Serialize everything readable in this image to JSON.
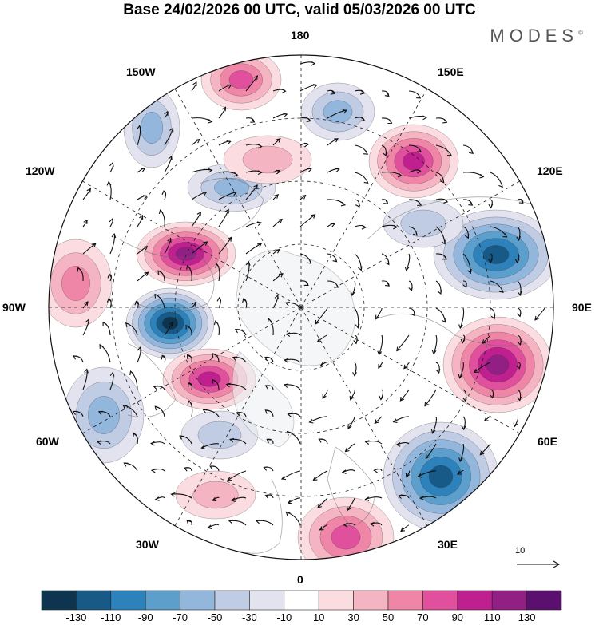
{
  "header": {
    "title": "Base 24/02/2026 00 UTC, valid 05/03/2026 00 UTC",
    "brand": "MODES",
    "brand_mark": "©"
  },
  "longitude_labels": {
    "lon_180": "180",
    "lon_150e": "150E",
    "lon_120e": "120E",
    "lon_90e": "90E",
    "lon_60e": "60E",
    "lon_30e": "30E",
    "lon_0": "0",
    "lon_30w": "30W",
    "lon_60w": "60W",
    "lon_90w": "90W",
    "lon_120w": "120W",
    "lon_150w": "150W"
  },
  "vector_reference": {
    "value": "10"
  },
  "colorbar": {
    "ticks": [
      "-130",
      "-110",
      "-90",
      "-70",
      "-50",
      "-30",
      "-10",
      "10",
      "30",
      "50",
      "70",
      "90",
      "110",
      "130"
    ],
    "colors": [
      "#0d3550",
      "#175a87",
      "#2d82bb",
      "#5d9fcc",
      "#92b6dc",
      "#c0cbe4",
      "#e2e3ef",
      "#ffffff",
      "#fbdde1",
      "#f5b4c1",
      "#ef86a8",
      "#e0509c",
      "#bf1f8f",
      "#922084",
      "#5b0f6e"
    ]
  },
  "anomalies": [
    {
      "name": "low-north-america",
      "value": -130
    },
    {
      "name": "high-canada",
      "value": 120
    },
    {
      "name": "high-greenland",
      "value": 90
    },
    {
      "name": "low-north-atlantic",
      "value": -50
    },
    {
      "name": "high-europe",
      "value": 80
    },
    {
      "name": "low-scandinavia",
      "value": -120
    },
    {
      "name": "high-west-siberia",
      "value": 125
    },
    {
      "name": "low-east-siberia",
      "value": -110
    },
    {
      "name": "high-chukotka",
      "value": 90
    },
    {
      "name": "low-north-pacific",
      "value": -55
    },
    {
      "name": "high-aleutians",
      "value": 70
    },
    {
      "name": "low-alaska",
      "value": -60
    },
    {
      "name": "high-east-pacific",
      "value": 50
    },
    {
      "name": "low-hudson",
      "value": -50
    },
    {
      "name": "low-central-atlantic",
      "value": -40
    },
    {
      "name": "high-arctic-canada",
      "value": 30
    },
    {
      "name": "low-west-pacific",
      "value": -40
    },
    {
      "name": "high-mid-atlantic",
      "value": 40
    }
  ],
  "colors": {
    "background": "#ffffff",
    "coastline": "#555555",
    "grid": "#222222",
    "land_mask": "#e9e9ec"
  }
}
